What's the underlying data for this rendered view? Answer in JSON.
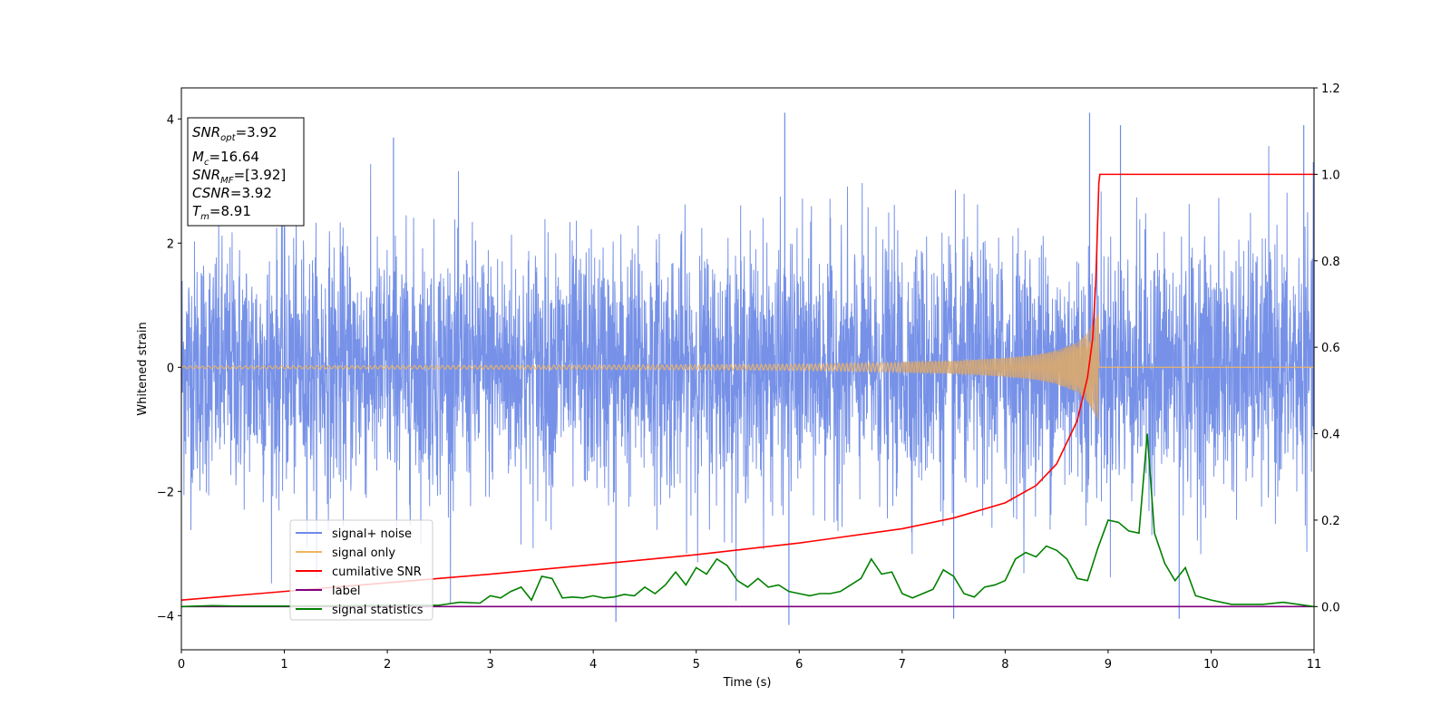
{
  "chart_data": {
    "type": "line",
    "xlabel": "Time (s)",
    "ylabel": "Whitened strain",
    "xlim": [
      0,
      11
    ],
    "ylim": [
      -4.55,
      4.5
    ],
    "y2lim": [
      -0.1,
      1.2
    ],
    "x_ticks": [
      "0",
      "1",
      "2",
      "3",
      "4",
      "5",
      "6",
      "7",
      "8",
      "9",
      "10",
      "11"
    ],
    "y_ticks": [
      "4",
      "2",
      "0",
      "−2",
      "−4"
    ],
    "y2_ticks": [
      "1.2",
      "1.0",
      "0.8",
      "0.6",
      "0.4",
      "0.2",
      "0.0"
    ],
    "grid": false,
    "legend_position": "lower-left",
    "info_box": {
      "snr_opt": "3.92",
      "mc": "16.64",
      "snr_mf": "[3.92]",
      "csnr": "3.92",
      "tm": "8.91"
    },
    "series": [
      {
        "name": "signal+ noise",
        "color": "#6f8be6",
        "axis": "left",
        "description_values": {
          "x_start": 0,
          "x_end": 11,
          "std": 1.0,
          "spikes_up": [
            [
              1.0,
              3.2
            ],
            [
              2.06,
              3.7
            ],
            [
              5.86,
              4.1
            ],
            [
              8.82,
              4.1
            ],
            [
              9.12,
              3.9
            ],
            [
              10.9,
              3.9
            ]
          ],
          "spikes_down": [
            [
              4.22,
              -4.1
            ],
            [
              5.9,
              -4.15
            ],
            [
              7.5,
              -4.05
            ],
            [
              9.69,
              -4.05
            ]
          ]
        }
      },
      {
        "name": "signal only",
        "color": "#f0b463",
        "axis": "left",
        "amplitude_points": [
          [
            0,
            0.02
          ],
          [
            3,
            0.03
          ],
          [
            5,
            0.04
          ],
          [
            6,
            0.05
          ],
          [
            7,
            0.08
          ],
          [
            7.5,
            0.1
          ],
          [
            8,
            0.15
          ],
          [
            8.3,
            0.2
          ],
          [
            8.5,
            0.27
          ],
          [
            8.7,
            0.4
          ],
          [
            8.8,
            0.55
          ],
          [
            8.85,
            0.7
          ],
          [
            8.91,
            0.88
          ]
        ],
        "merger_time": 8.91
      },
      {
        "name": "cumilative SNR",
        "color": "#ff0000",
        "axis": "right",
        "x": [
          0,
          1,
          2,
          3,
          4,
          5,
          6,
          7,
          7.5,
          8,
          8.3,
          8.5,
          8.7,
          8.8,
          8.85,
          8.88,
          8.91,
          8.92,
          11
        ],
        "y": [
          0.015,
          0.035,
          0.055,
          0.075,
          0.097,
          0.12,
          0.147,
          0.18,
          0.205,
          0.24,
          0.28,
          0.33,
          0.43,
          0.53,
          0.62,
          0.75,
          0.98,
          1.0,
          1.0
        ]
      },
      {
        "name": "label",
        "color": "#800080",
        "axis": "right",
        "x": [
          0,
          11
        ],
        "y": [
          0.0,
          0.0
        ]
      },
      {
        "name": "signal statistics",
        "color": "#008000",
        "axis": "right",
        "x": [
          0,
          0.3,
          0.6,
          1.0,
          1.5,
          2.0,
          2.5,
          2.7,
          2.9,
          3.0,
          3.1,
          3.2,
          3.3,
          3.4,
          3.5,
          3.6,
          3.7,
          3.8,
          3.9,
          4.0,
          4.1,
          4.2,
          4.3,
          4.4,
          4.5,
          4.6,
          4.7,
          4.8,
          4.9,
          5.0,
          5.1,
          5.2,
          5.3,
          5.4,
          5.5,
          5.6,
          5.7,
          5.8,
          5.9,
          6.0,
          6.1,
          6.2,
          6.3,
          6.4,
          6.5,
          6.6,
          6.7,
          6.8,
          6.9,
          7.0,
          7.1,
          7.2,
          7.3,
          7.4,
          7.5,
          7.6,
          7.7,
          7.8,
          7.9,
          8.0,
          8.1,
          8.2,
          8.3,
          8.4,
          8.5,
          8.6,
          8.7,
          8.8,
          8.9,
          9.0,
          9.1,
          9.2,
          9.3,
          9.38,
          9.45,
          9.55,
          9.65,
          9.75,
          9.85,
          10.0,
          10.2,
          10.4,
          10.5,
          10.7,
          11.0
        ],
        "y": [
          0.0,
          0.002,
          0.001,
          0.001,
          0.002,
          0.003,
          0.003,
          0.01,
          0.008,
          0.025,
          0.02,
          0.035,
          0.045,
          0.015,
          0.07,
          0.065,
          0.02,
          0.022,
          0.02,
          0.025,
          0.02,
          0.022,
          0.028,
          0.025,
          0.045,
          0.03,
          0.05,
          0.08,
          0.05,
          0.09,
          0.075,
          0.11,
          0.095,
          0.06,
          0.045,
          0.065,
          0.045,
          0.05,
          0.035,
          0.03,
          0.025,
          0.03,
          0.03,
          0.035,
          0.05,
          0.065,
          0.11,
          0.075,
          0.08,
          0.03,
          0.02,
          0.03,
          0.04,
          0.085,
          0.07,
          0.03,
          0.022,
          0.045,
          0.05,
          0.06,
          0.11,
          0.125,
          0.115,
          0.14,
          0.13,
          0.11,
          0.065,
          0.06,
          0.135,
          0.2,
          0.195,
          0.175,
          0.17,
          0.4,
          0.17,
          0.1,
          0.06,
          0.09,
          0.025,
          0.015,
          0.005,
          0.005,
          0.005,
          0.01,
          0.0
        ]
      }
    ]
  }
}
